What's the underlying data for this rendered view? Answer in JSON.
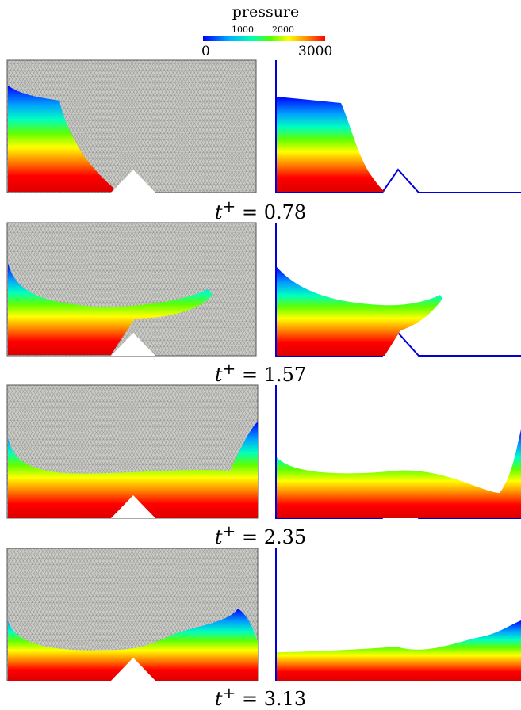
{
  "legend": {
    "title": "pressure",
    "ticks_small": [
      "1000",
      "2000"
    ],
    "tick_min": "0",
    "tick_max": "3000",
    "colors": [
      "#0000ff",
      "#00b4ff",
      "#00ffb0",
      "#4dff00",
      "#ffff00",
      "#ff8c00",
      "#ff0000"
    ]
  },
  "frames": [
    {
      "caption_var": "t",
      "caption_sup": "+",
      "caption_eq": "=",
      "caption_val": "0.78"
    },
    {
      "caption_var": "t",
      "caption_sup": "+",
      "caption_eq": "=",
      "caption_val": "1.57"
    },
    {
      "caption_var": "t",
      "caption_sup": "+",
      "caption_eq": "=",
      "caption_val": "2.35"
    },
    {
      "caption_var": "t",
      "caption_sup": "+",
      "caption_eq": "=",
      "caption_val": "3.13"
    }
  ]
}
